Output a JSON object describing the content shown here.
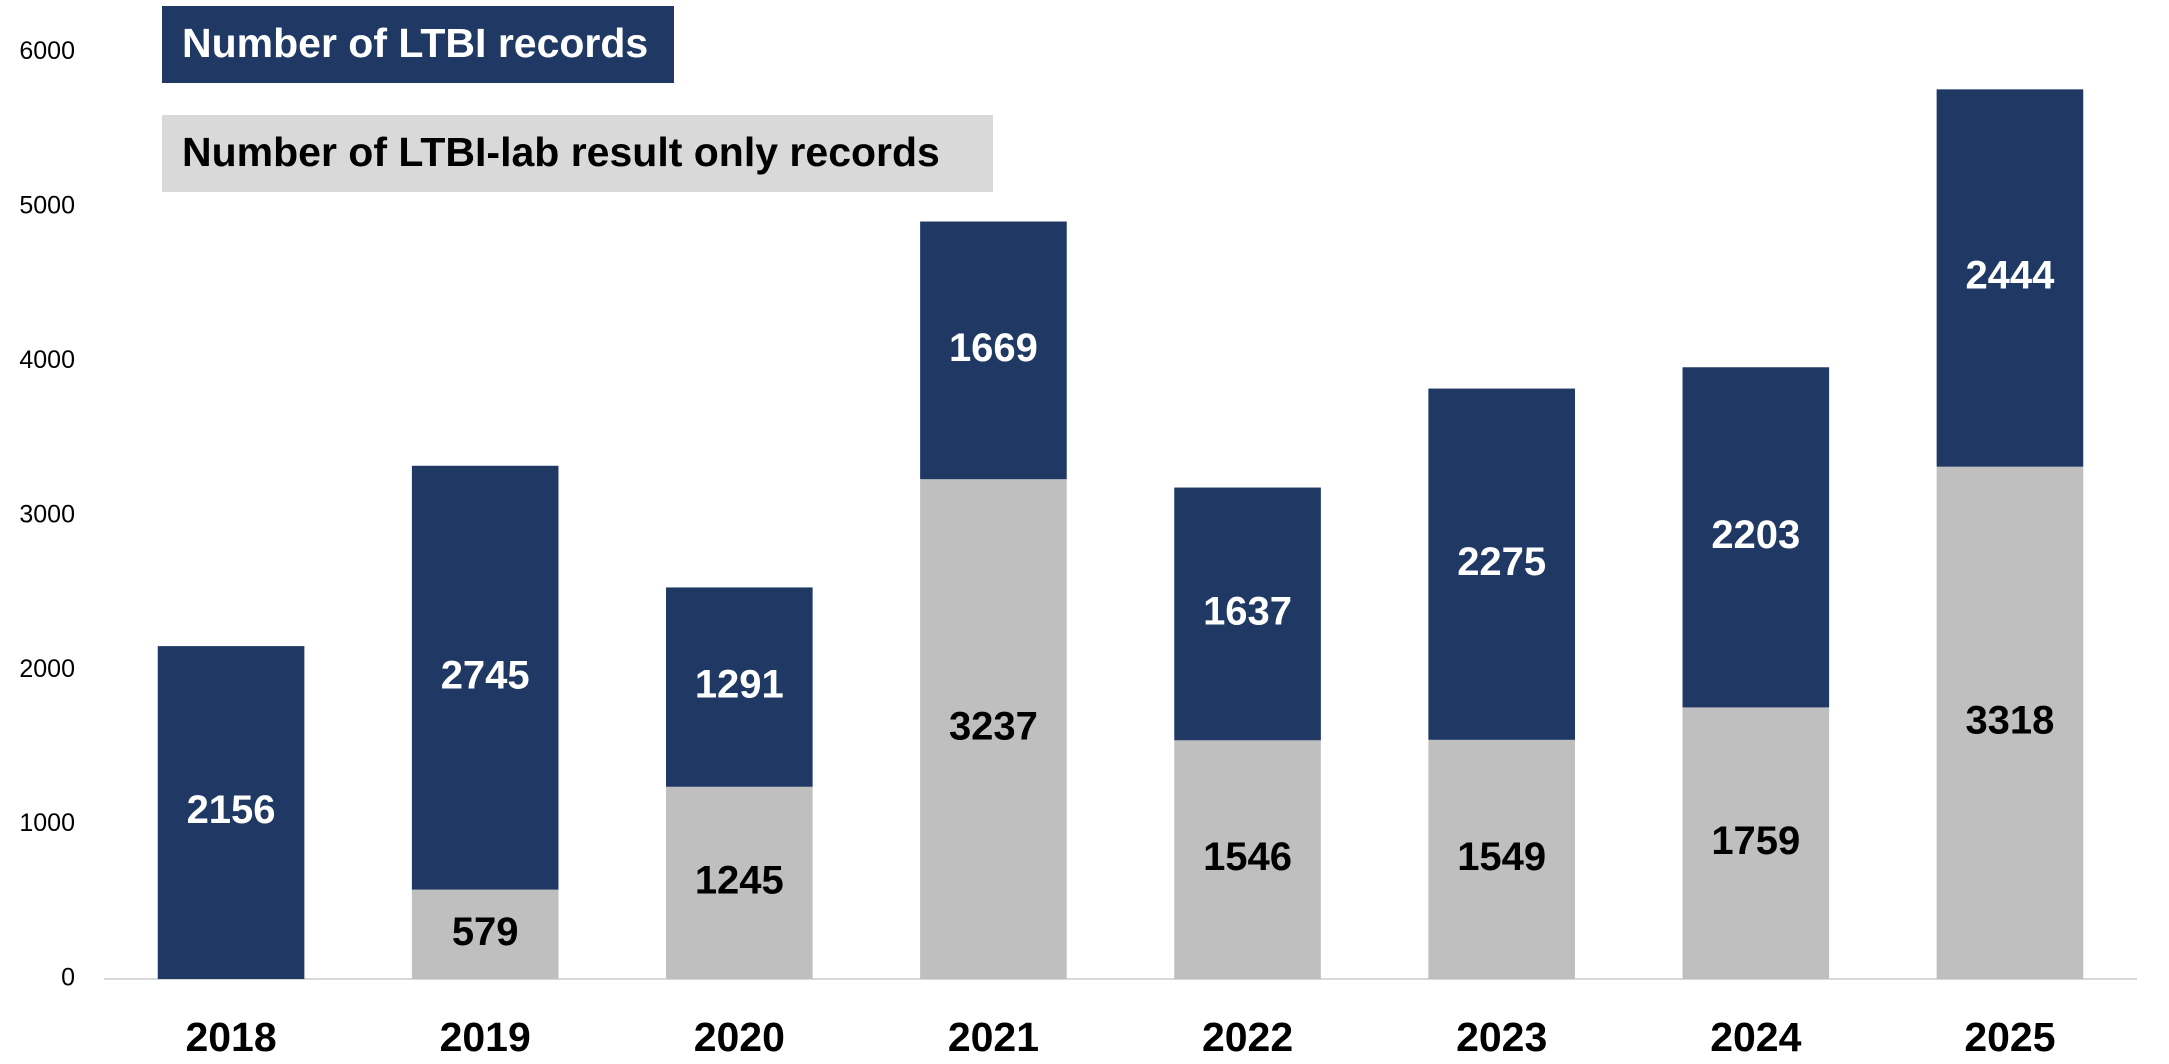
{
  "chart_data": {
    "type": "stacked_bar",
    "categories": [
      "2018",
      "2019",
      "2020",
      "2021",
      "2022",
      "2023",
      "2024",
      "2025"
    ],
    "series": [
      {
        "name": "Number of LTBI-lab result only records",
        "color": "#bfbfbf",
        "values": [
          null,
          579,
          1245,
          3237,
          1546,
          1549,
          1759,
          3318
        ]
      },
      {
        "name": "Number of LTBI records",
        "color": "#1f3864",
        "values": [
          2156,
          2745,
          1291,
          1669,
          1637,
          2275,
          2203,
          2444
        ]
      }
    ],
    "ylim": [
      0,
      6000
    ],
    "yticks": [
      0,
      1000,
      2000,
      3000,
      4000,
      5000,
      6000
    ],
    "grid": false
  }
}
